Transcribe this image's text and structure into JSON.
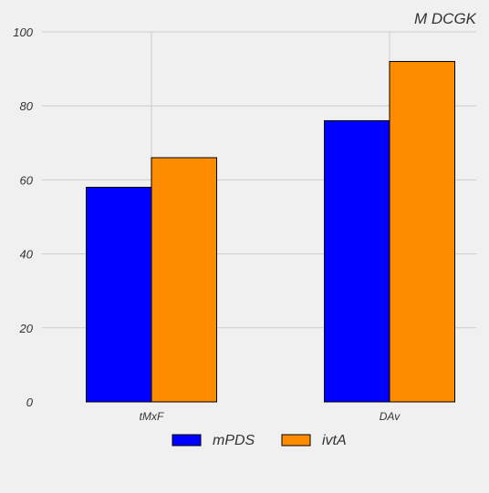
{
  "chart_data": {
    "type": "bar",
    "title": "M DCGK",
    "xlabel": "",
    "ylabel": "",
    "categories": [
      "tMxF",
      "DAv"
    ],
    "series": [
      {
        "name": "mPDS",
        "values": [
          58,
          76
        ],
        "color": "#0000ff"
      },
      {
        "name": "ivtA",
        "values": [
          66,
          92
        ],
        "color": "#ff8c00"
      }
    ],
    "ylim": [
      0,
      100
    ],
    "yticks": [
      0,
      20,
      40,
      60,
      80,
      100
    ],
    "grid": true,
    "legend_position": "bottom-center"
  }
}
